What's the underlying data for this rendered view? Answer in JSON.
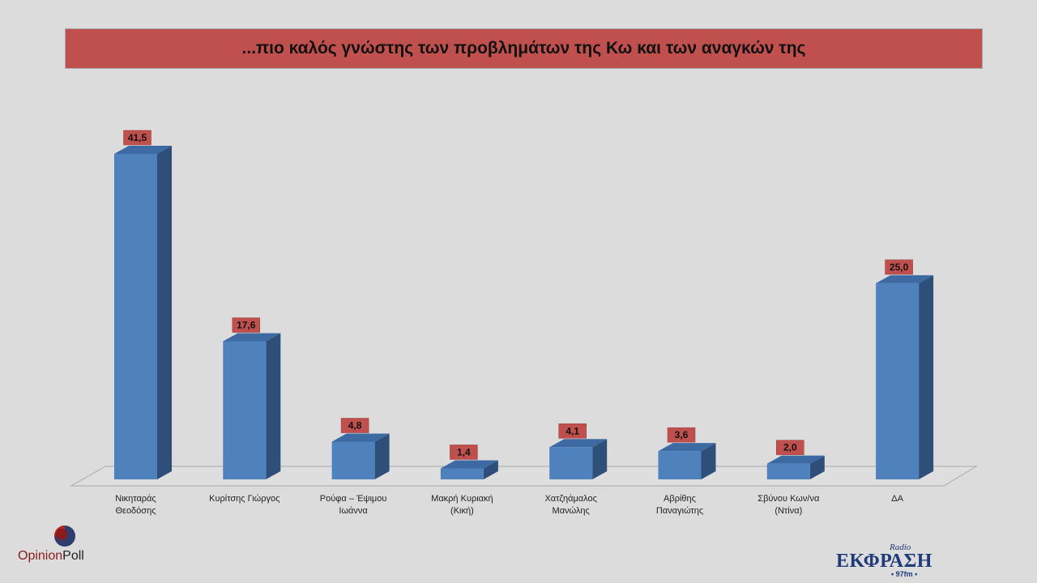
{
  "header": {
    "title": "...πιο καλός γνώστης των προβλημάτων της Κω και των αναγκών της"
  },
  "chart_data": {
    "type": "bar",
    "title": "...πιο καλός γνώστης των προβλημάτων της Κω και των αναγκών της",
    "categories": [
      [
        "Νικηταράς",
        "Θεοδόσης"
      ],
      [
        "Κυρίτσης Γιώργος"
      ],
      [
        "Ρούφα – Έψιμου",
        "Ιωάννα"
      ],
      [
        "Μακρή Κυριακή",
        "(Κική)"
      ],
      [
        "Χατζηάμαλος",
        "Μανώλης"
      ],
      [
        "Αβρίθης",
        "Παναγιώτης"
      ],
      [
        "Σβύνου Κων/να",
        "(Ντίνα)"
      ],
      [
        "ΔΑ"
      ]
    ],
    "values": [
      41.5,
      17.6,
      4.8,
      1.4,
      4.1,
      3.6,
      2.0,
      25.0
    ],
    "value_labels": [
      "41,5",
      "17,6",
      "4,8",
      "1,4",
      "4,1",
      "3,6",
      "2,0",
      "25,0"
    ],
    "colors": {
      "bar_front": "#4f81bd",
      "bar_side": "#2e4f7a",
      "bar_top": "#3d6aa3",
      "label_bg": "#c0504d",
      "title_bg": "#c0504d"
    }
  },
  "logos": {
    "left": {
      "part1": "Opinion",
      "part2": "Poll"
    },
    "right": {
      "radio": "Radio",
      "name": "ΕΚΦΡΑΣΗ",
      "freq": "• 97fm •"
    }
  }
}
